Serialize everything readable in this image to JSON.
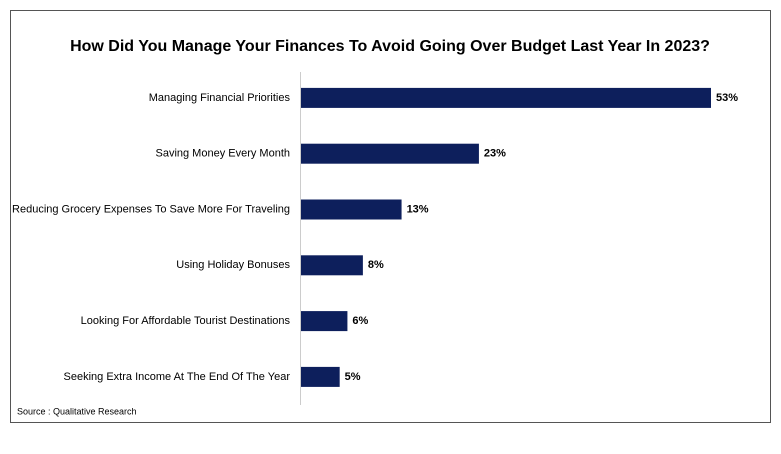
{
  "chart_data": {
    "type": "bar",
    "orientation": "horizontal",
    "title": "How Did You Manage Your Finances To Avoid Going Over Budget Last Year In 2023?",
    "categories": [
      "Managing Financial Priorities",
      "Saving Money Every Month",
      "Reducing Grocery Expenses To Save More For Traveling",
      "Using Holiday Bonuses",
      "Looking For Affordable Tourist Destinations",
      "Seeking Extra Income At The End Of The Year"
    ],
    "values": [
      53,
      23,
      13,
      8,
      6,
      5
    ],
    "value_labels": [
      "53%",
      "23%",
      "13%",
      "8%",
      "6%",
      "5%"
    ],
    "color": "#0d1f5c",
    "source": "Source : Qualitative Research"
  }
}
